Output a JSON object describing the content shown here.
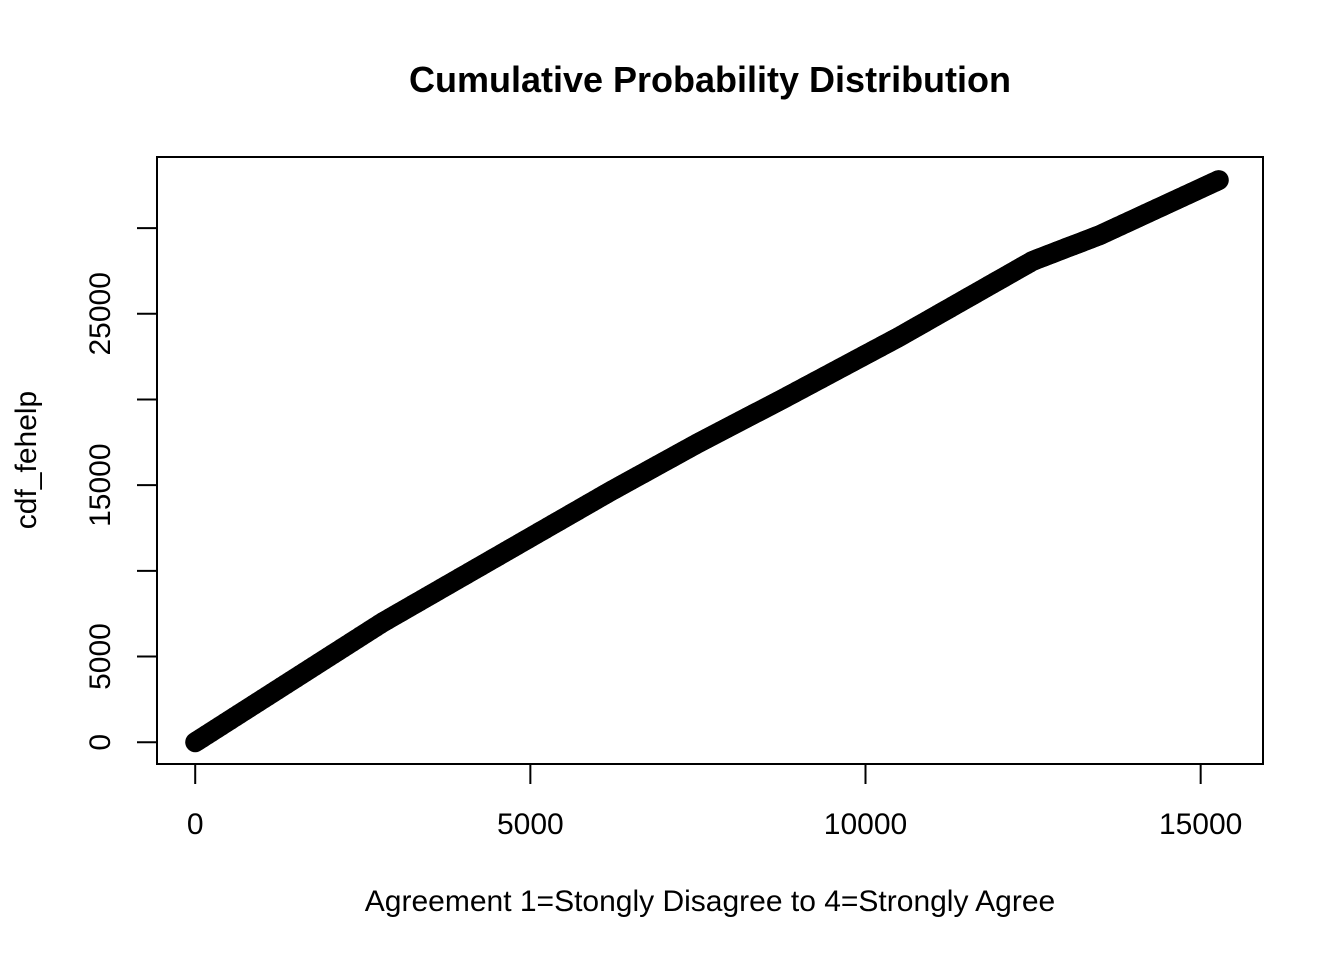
{
  "chart_data": {
    "type": "scatter",
    "title": "Cumulative Probability Distribution",
    "xlabel": "Agreement 1=Stongly Disagree to 4=Strongly Agree",
    "ylabel": "cdf_fehelp",
    "xlim": [
      -570,
      15930
    ],
    "ylim": [
      -1270,
      34150
    ],
    "x_ticks": [
      0,
      5000,
      10000,
      15000
    ],
    "x_tick_labels": [
      "0",
      "5000",
      "10000",
      "15000"
    ],
    "y_ticks": [
      0,
      5000,
      10000,
      15000,
      20000,
      25000,
      30000
    ],
    "y_tick_labels": [
      "0",
      "5000",
      "",
      "15000",
      "",
      "25000",
      ""
    ],
    "point_color": "#000000",
    "series": [
      {
        "x": [
          0,
          1500,
          2800,
          4400,
          6200,
          7500,
          8800,
          10500,
          12500,
          13500,
          15270
        ],
        "y": [
          0,
          3750,
          7000,
          10600,
          14650,
          17450,
          20100,
          23650,
          28100,
          29600,
          32800
        ]
      }
    ]
  }
}
